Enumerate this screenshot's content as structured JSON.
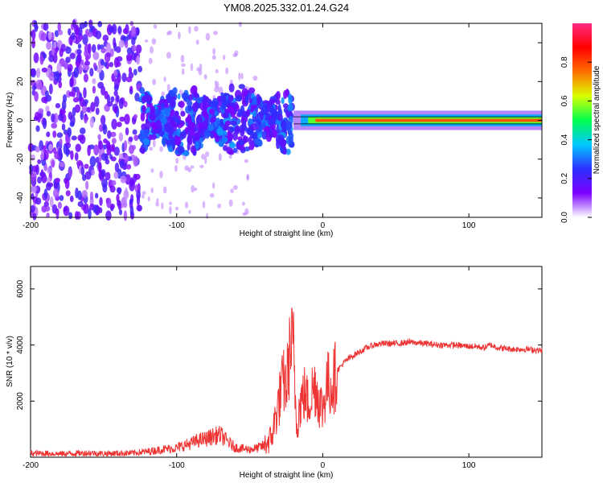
{
  "title": "YM08.2025.332.01.24.G24",
  "chart_data": [
    {
      "type": "heatmap",
      "title": "YM08.2025.332.01.24.G24",
      "xlabel": "Height of straight line (km)",
      "ylabel": "Frequency (Hz)",
      "xlim": [
        -200,
        150
      ],
      "ylim": [
        -50,
        50
      ],
      "xticks": [
        -200,
        -100,
        0,
        100
      ],
      "xtick_labels": [
        "-200",
        "-100",
        "0",
        "100"
      ],
      "yticks": [
        -40,
        -20,
        0,
        20,
        40
      ],
      "ytick_labels": [
        "-40",
        "-20",
        "0",
        "20",
        "40"
      ],
      "colorbar": {
        "label": "Normalized spectral amplitude",
        "range": [
          0,
          1
        ],
        "ticks": [
          0.0,
          0.2,
          0.4,
          0.6,
          0.8
        ],
        "tick_labels": [
          "0.0",
          "0.2",
          "0.4",
          "0.6",
          "0.8"
        ],
        "colors": [
          "#ffffff",
          "#7b00ff",
          "#2d30ff",
          "#00c8ff",
          "#00ff50",
          "#d8ff00",
          "#ff7000",
          "#ff0000",
          "#ff2a80"
        ]
      },
      "description_regions": [
        {
          "x_range": [
            -200,
            -125
          ],
          "y_range": [
            -50,
            50
          ],
          "level": 0.1
        },
        {
          "x_range": [
            -125,
            -20
          ],
          "y_range": [
            -25,
            20
          ],
          "level": 0.25
        },
        {
          "x_range": [
            -20,
            150
          ],
          "y_range": [
            -2,
            2
          ],
          "level": 0.75
        }
      ]
    },
    {
      "type": "line",
      "xlabel": "Height of straight line (km)",
      "ylabel": "SNR (10 * v/v)",
      "xlim": [
        -200,
        150
      ],
      "ylim": [
        0,
        6800
      ],
      "xticks": [
        -200,
        -100,
        0,
        100
      ],
      "xtick_labels": [
        "-200",
        "-100",
        "0",
        "100"
      ],
      "yticks": [
        2000,
        4000,
        6000
      ],
      "ytick_labels": [
        "2000",
        "4000",
        "6000"
      ],
      "line_color": "#ee3333",
      "series": [
        {
          "name": "SNR",
          "x": [
            -200,
            -190,
            -180,
            -170,
            -160,
            -150,
            -140,
            -130,
            -120,
            -110,
            -100,
            -95,
            -90,
            -85,
            -80,
            -75,
            -70,
            -65,
            -60,
            -55,
            -50,
            -45,
            -40,
            -35,
            -32,
            -30,
            -27,
            -25,
            -22,
            -20,
            -18,
            -15,
            -12,
            -10,
            -7,
            -5,
            -3,
            0,
            3,
            5,
            8,
            10,
            15,
            20,
            25,
            30,
            35,
            40,
            50,
            60,
            70,
            80,
            90,
            100,
            105,
            110,
            115,
            120,
            130,
            140,
            150
          ],
          "y": [
            130,
            140,
            120,
            140,
            150,
            130,
            140,
            150,
            200,
            280,
            330,
            420,
            500,
            600,
            650,
            750,
            800,
            550,
            350,
            300,
            280,
            320,
            420,
            700,
            1500,
            2000,
            2700,
            2500,
            4000,
            3800,
            1200,
            2000,
            2300,
            1900,
            2400,
            2600,
            2100,
            1700,
            2700,
            2500,
            2800,
            3100,
            3400,
            3600,
            3750,
            3900,
            4000,
            4050,
            4050,
            4100,
            4050,
            4000,
            4000,
            3950,
            3950,
            3900,
            4000,
            3900,
            3850,
            3850,
            3800
          ]
        }
      ]
    }
  ]
}
